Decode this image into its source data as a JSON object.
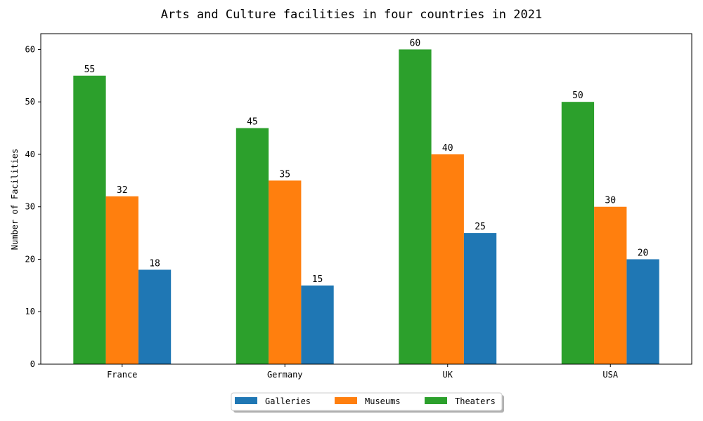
{
  "chart_data": {
    "type": "bar",
    "title": "Arts and Culture facilities in four countries in 2021",
    "xlabel": "",
    "ylabel": "Number of Facilities",
    "categories": [
      "France",
      "Germany",
      "UK",
      "USA"
    ],
    "series": [
      {
        "name": "Theaters",
        "values": [
          55,
          45,
          60,
          50
        ],
        "color": "#2ca02c"
      },
      {
        "name": "Museums",
        "values": [
          32,
          35,
          40,
          30
        ],
        "color": "#ff7f0e"
      },
      {
        "name": "Galleries",
        "values": [
          18,
          15,
          25,
          20
        ],
        "color": "#1f77b4"
      }
    ],
    "legend_order": [
      "Galleries",
      "Museums",
      "Theaters"
    ],
    "ylim": [
      0,
      63
    ],
    "yticks": [
      0,
      10,
      20,
      30,
      40,
      50,
      60
    ],
    "grid": false,
    "legend_position": "bottom-center"
  }
}
